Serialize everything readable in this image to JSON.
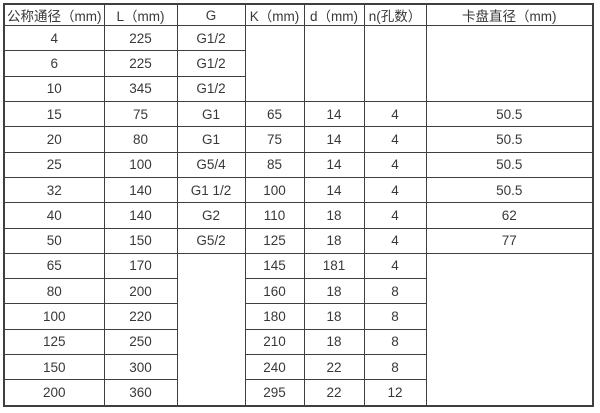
{
  "table": {
    "title": "pipe-spec-dimensions-table",
    "headers": [
      "公称通径（mm)",
      "L（mm)",
      "G",
      "K（mm)",
      "d（mm)",
      "n(孔数）",
      "卡盘直径（mm)"
    ],
    "rows": [
      {
        "dn": "4",
        "l": "225",
        "g": "G1/2"
      },
      {
        "dn": "6",
        "l": "225",
        "g": "G1/2"
      },
      {
        "dn": "10",
        "l": "345",
        "g": "G1/2"
      },
      {
        "dn": "15",
        "l": "75",
        "g": "G1",
        "k": "65",
        "d": "14",
        "n": "4",
        "c": "50.5"
      },
      {
        "dn": "20",
        "l": "80",
        "g": "G1",
        "k": "75",
        "d": "14",
        "n": "4",
        "c": "50.5"
      },
      {
        "dn": "25",
        "l": "100",
        "g": "G5/4",
        "k": "85",
        "d": "14",
        "n": "4",
        "c": "50.5"
      },
      {
        "dn": "32",
        "l": "140",
        "g": "G1 1/2",
        "k": "100",
        "d": "14",
        "n": "4",
        "c": "50.5"
      },
      {
        "dn": "40",
        "l": "140",
        "g": "G2",
        "k": "110",
        "d": "18",
        "n": "4",
        "c": "62"
      },
      {
        "dn": "50",
        "l": "150",
        "g": "G5/2",
        "k": "125",
        "d": "18",
        "n": "4",
        "c": "77"
      },
      {
        "dn": "65",
        "l": "170",
        "k": "145",
        "d": "181",
        "n": "4"
      },
      {
        "dn": "80",
        "l": "200",
        "k": "160",
        "d": "18",
        "n": "8"
      },
      {
        "dn": "100",
        "l": "220",
        "k": "180",
        "d": "18",
        "n": "8"
      },
      {
        "dn": "125",
        "l": "250",
        "k": "210",
        "d": "18",
        "n": "8"
      },
      {
        "dn": "150",
        "l": "300",
        "k": "240",
        "d": "22",
        "n": "8"
      },
      {
        "dn": "200",
        "l": "360",
        "k": "295",
        "d": "22",
        "n": "12"
      }
    ]
  },
  "colors": {
    "border": "#3f3f3f",
    "text": "#383838",
    "background": "#ffffff"
  }
}
